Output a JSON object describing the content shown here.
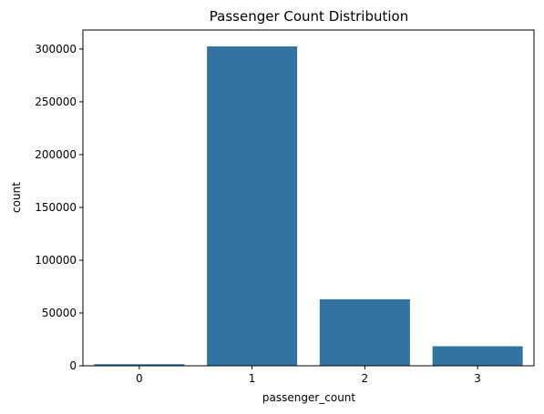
{
  "chart_data": {
    "type": "bar",
    "title": "Passenger Count Distribution",
    "xlabel": "passenger_count",
    "ylabel": "count",
    "categories": [
      "0",
      "1",
      "2",
      "3"
    ],
    "values": [
      1500,
      302500,
      63000,
      18500
    ],
    "ylim": [
      0,
      318000
    ],
    "yticks": [
      0,
      50000,
      100000,
      150000,
      200000,
      250000,
      300000
    ],
    "ytick_labels": [
      "0",
      "50000",
      "100000",
      "150000",
      "200000",
      "250000",
      "300000"
    ],
    "bar_color": "#3274a1",
    "grid": false,
    "legend": "none"
  }
}
